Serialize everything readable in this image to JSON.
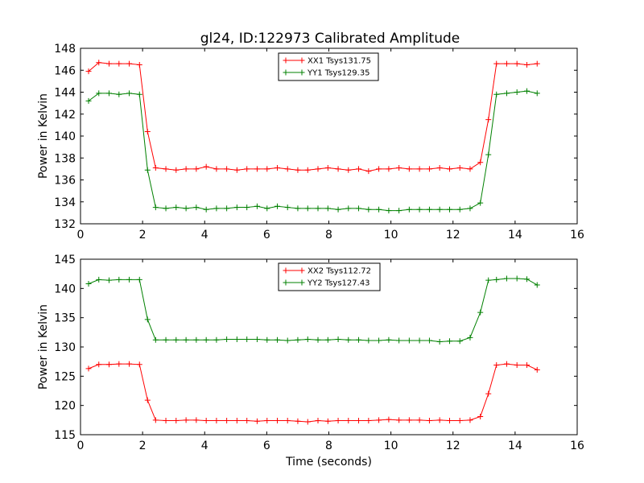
{
  "title": "gl24, ID:122973 Calibrated Amplitude",
  "chart_data": [
    {
      "type": "line",
      "ylabel": "Power in Kelvin",
      "xlabel": "",
      "xlim": [
        0,
        16
      ],
      "ylim": [
        132,
        148
      ],
      "xticks": [
        0,
        2,
        4,
        6,
        8,
        10,
        12,
        14,
        16
      ],
      "yticks": [
        132,
        134,
        136,
        138,
        140,
        142,
        144,
        146,
        148
      ],
      "legend_position": "top-center",
      "series": [
        {
          "name": "XX1 Tsys131.75",
          "color": "#ff0000",
          "x": [
            0.26,
            0.59,
            0.92,
            1.24,
            1.57,
            1.9,
            2.16,
            2.42,
            2.75,
            3.08,
            3.4,
            3.73,
            4.05,
            4.38,
            4.71,
            5.04,
            5.36,
            5.69,
            6.01,
            6.34,
            6.67,
            7.0,
            7.32,
            7.65,
            7.97,
            8.3,
            8.63,
            8.96,
            9.28,
            9.61,
            9.93,
            10.26,
            10.59,
            10.92,
            11.24,
            11.57,
            11.89,
            12.22,
            12.55,
            12.88,
            13.14,
            13.4,
            13.73,
            14.06,
            14.38,
            14.71
          ],
          "y": [
            145.9,
            146.7,
            146.6,
            146.6,
            146.6,
            146.5,
            140.4,
            137.1,
            137.0,
            136.9,
            137.0,
            137.0,
            137.2,
            137.0,
            137.0,
            136.9,
            137.0,
            137.0,
            137.0,
            137.1,
            137.0,
            136.9,
            136.9,
            137.0,
            137.1,
            137.0,
            136.9,
            137.0,
            136.8,
            137.0,
            137.0,
            137.1,
            137.0,
            137.0,
            137.0,
            137.1,
            137.0,
            137.1,
            137.0,
            137.6,
            141.5,
            146.6,
            146.6,
            146.6,
            146.5,
            146.6
          ]
        },
        {
          "name": "YY1 Tsys129.35",
          "color": "#008000",
          "x": [
            0.26,
            0.59,
            0.92,
            1.24,
            1.57,
            1.9,
            2.16,
            2.42,
            2.75,
            3.08,
            3.4,
            3.73,
            4.05,
            4.38,
            4.71,
            5.04,
            5.36,
            5.69,
            6.01,
            6.34,
            6.67,
            7.0,
            7.32,
            7.65,
            7.97,
            8.3,
            8.63,
            8.96,
            9.28,
            9.61,
            9.93,
            10.26,
            10.59,
            10.92,
            11.24,
            11.57,
            11.89,
            12.22,
            12.55,
            12.88,
            13.14,
            13.4,
            13.73,
            14.06,
            14.38,
            14.71
          ],
          "y": [
            143.2,
            143.9,
            143.9,
            143.8,
            143.9,
            143.8,
            136.9,
            133.5,
            133.4,
            133.5,
            133.4,
            133.5,
            133.3,
            133.4,
            133.4,
            133.5,
            133.5,
            133.6,
            133.4,
            133.6,
            133.5,
            133.4,
            133.4,
            133.4,
            133.4,
            133.3,
            133.4,
            133.4,
            133.3,
            133.3,
            133.2,
            133.2,
            133.3,
            133.3,
            133.3,
            133.3,
            133.3,
            133.3,
            133.4,
            133.9,
            138.3,
            143.8,
            143.9,
            144.0,
            144.1,
            143.9
          ]
        }
      ]
    },
    {
      "type": "line",
      "ylabel": "Power in Kelvin",
      "xlabel": "Time (seconds)",
      "xlim": [
        0,
        16
      ],
      "ylim": [
        115,
        145
      ],
      "xticks": [
        0,
        2,
        4,
        6,
        8,
        10,
        12,
        14,
        16
      ],
      "yticks": [
        115,
        120,
        125,
        130,
        135,
        140,
        145
      ],
      "legend_position": "top-center",
      "series": [
        {
          "name": "XX2 Tsys112.72",
          "color": "#ff0000",
          "x": [
            0.26,
            0.59,
            0.92,
            1.24,
            1.57,
            1.9,
            2.16,
            2.42,
            2.75,
            3.08,
            3.4,
            3.73,
            4.05,
            4.38,
            4.71,
            5.04,
            5.36,
            5.69,
            6.01,
            6.34,
            6.67,
            7.0,
            7.32,
            7.65,
            7.97,
            8.3,
            8.63,
            8.96,
            9.28,
            9.61,
            9.93,
            10.26,
            10.59,
            10.92,
            11.24,
            11.57,
            11.89,
            12.22,
            12.55,
            12.88,
            13.14,
            13.4,
            13.73,
            14.06,
            14.38,
            14.71
          ],
          "y": [
            126.3,
            127.0,
            127.0,
            127.1,
            127.1,
            127.0,
            120.9,
            117.5,
            117.4,
            117.4,
            117.5,
            117.5,
            117.4,
            117.4,
            117.4,
            117.4,
            117.4,
            117.3,
            117.4,
            117.4,
            117.4,
            117.3,
            117.2,
            117.4,
            117.3,
            117.4,
            117.4,
            117.4,
            117.4,
            117.5,
            117.6,
            117.5,
            117.5,
            117.5,
            117.4,
            117.5,
            117.4,
            117.4,
            117.5,
            118.1,
            122.0,
            126.9,
            127.1,
            126.9,
            126.9,
            126.1
          ]
        },
        {
          "name": "YY2 Tsys127.43",
          "color": "#008000",
          "x": [
            0.26,
            0.59,
            0.92,
            1.24,
            1.57,
            1.9,
            2.16,
            2.42,
            2.75,
            3.08,
            3.4,
            3.73,
            4.05,
            4.38,
            4.71,
            5.04,
            5.36,
            5.69,
            6.01,
            6.34,
            6.67,
            7.0,
            7.32,
            7.65,
            7.97,
            8.3,
            8.63,
            8.96,
            9.28,
            9.61,
            9.93,
            10.26,
            10.59,
            10.92,
            11.24,
            11.57,
            11.89,
            12.22,
            12.55,
            12.88,
            13.14,
            13.4,
            13.73,
            14.06,
            14.38,
            14.71
          ],
          "y": [
            140.8,
            141.5,
            141.4,
            141.5,
            141.5,
            141.5,
            134.7,
            131.2,
            131.2,
            131.2,
            131.2,
            131.2,
            131.2,
            131.2,
            131.3,
            131.3,
            131.3,
            131.3,
            131.2,
            131.2,
            131.1,
            131.2,
            131.3,
            131.2,
            131.2,
            131.3,
            131.2,
            131.2,
            131.1,
            131.1,
            131.2,
            131.1,
            131.1,
            131.1,
            131.1,
            130.9,
            131.0,
            131.0,
            131.6,
            135.9,
            141.4,
            141.5,
            141.7,
            141.7,
            141.6,
            140.6
          ]
        }
      ]
    }
  ]
}
